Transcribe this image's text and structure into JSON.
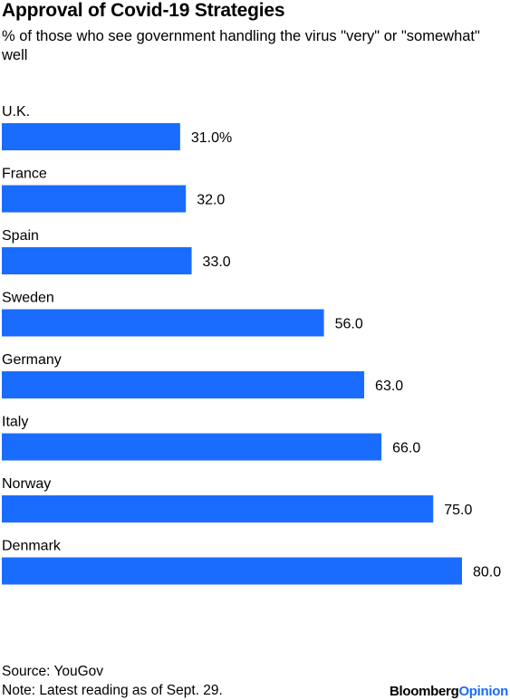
{
  "chart_data": {
    "type": "bar",
    "orientation": "horizontal",
    "title": "Approval of Covid-19 Strategies",
    "subtitle": "% of those who see government handling the virus \"very\" or \"somewhat\" well",
    "categories": [
      "U.K.",
      "France",
      "Spain",
      "Sweden",
      "Germany",
      "Italy",
      "Norway",
      "Denmark"
    ],
    "values": [
      31.0,
      32.0,
      33.0,
      56.0,
      63.0,
      66.0,
      75.0,
      80.0
    ],
    "value_labels": [
      "31.0%",
      "32.0",
      "33.0",
      "56.0",
      "63.0",
      "66.0",
      "75.0",
      "80.0"
    ],
    "xlim": [
      0,
      80
    ],
    "bar_color": "#1a6cff",
    "grid": false,
    "legend": "none"
  },
  "footer": {
    "source": "Source: YouGov",
    "note": "Note: Latest reading as of Sept. 29.",
    "brand_part1": "Bloomberg",
    "brand_part2": "Opinion"
  }
}
